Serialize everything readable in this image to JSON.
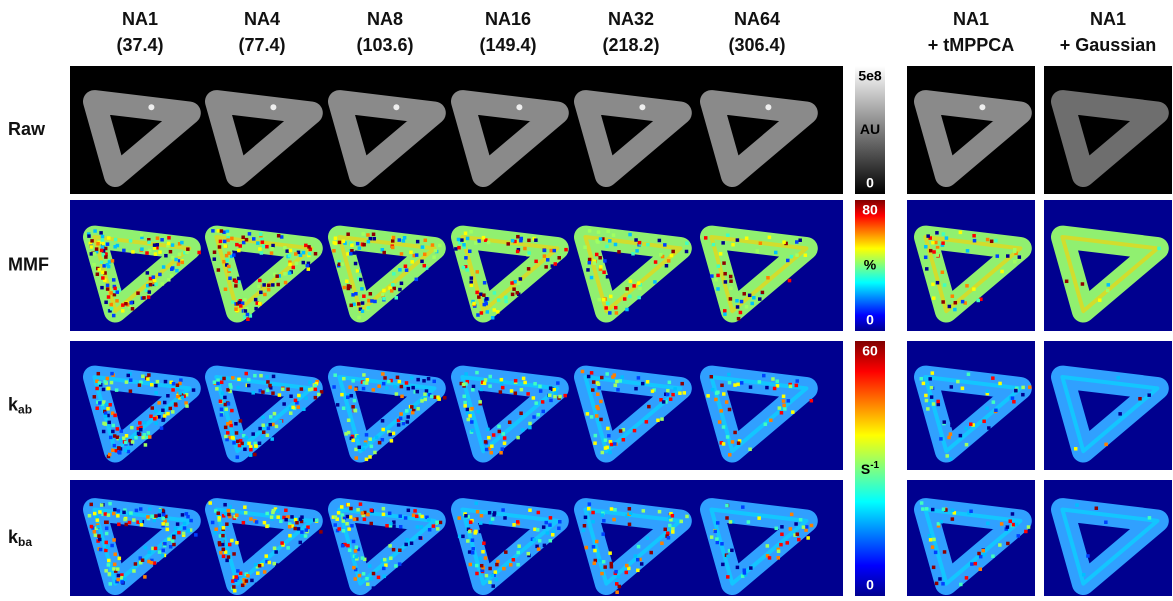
{
  "columns": [
    {
      "label": "NA1",
      "value": "(37.4)"
    },
    {
      "label": "NA4",
      "value": "(77.4)"
    },
    {
      "label": "NA8",
      "value": "(103.6)"
    },
    {
      "label": "NA16",
      "value": "(149.4)"
    },
    {
      "label": "NA32",
      "value": "(218.2)"
    },
    {
      "label": "NA64",
      "value": "(306.4)"
    }
  ],
  "extra_columns": [
    {
      "label": "NA1",
      "method": "+ tMPPCA"
    },
    {
      "label": "NA1",
      "method": "+ Gaussian"
    }
  ],
  "rows": [
    {
      "label": "Raw"
    },
    {
      "label": "MMF"
    },
    {
      "label": "k",
      "sub": "ab"
    },
    {
      "label": "k",
      "sub": "ba"
    }
  ],
  "colorbars": [
    {
      "max": "5e8",
      "unit": "AU",
      "min": "0"
    },
    {
      "max": "80",
      "unit": "%",
      "min": "0"
    },
    {
      "max": "60",
      "unit": "S",
      "unit_sup": "-1",
      "min": "0"
    }
  ]
}
